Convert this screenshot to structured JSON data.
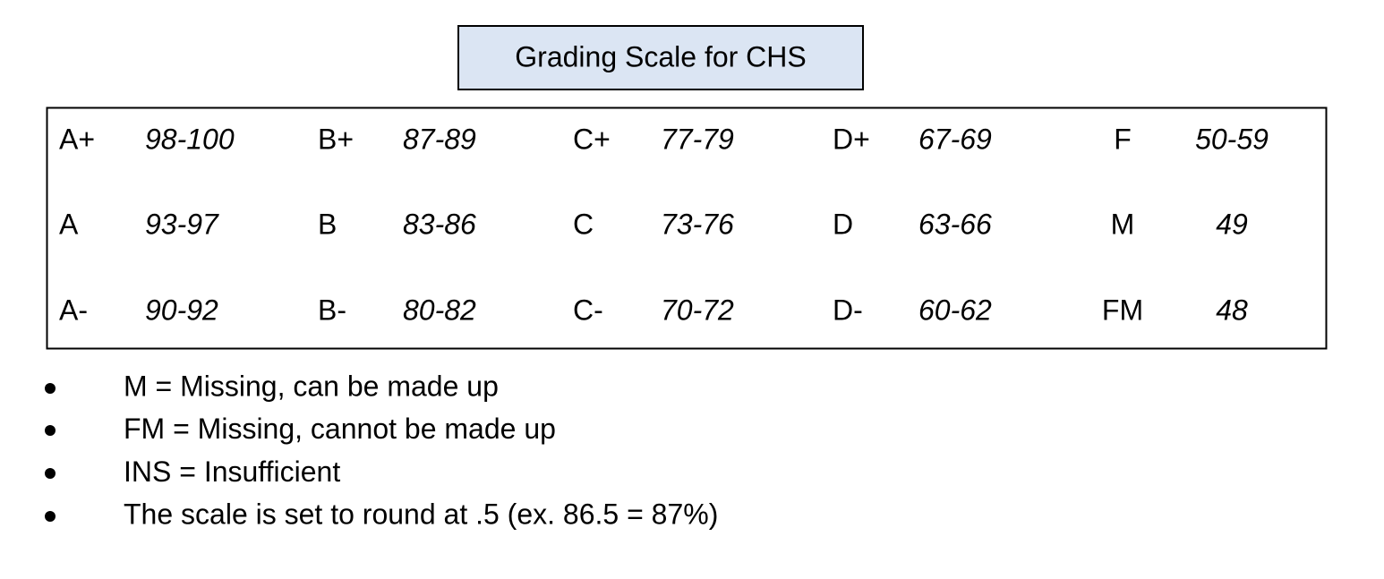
{
  "header": {
    "title": "Grading Scale for CHS"
  },
  "table": {
    "rows": [
      [
        "A+",
        "98-100",
        "B+",
        "87-89",
        "C+",
        "77-79",
        "D+",
        "67-69",
        "F",
        "50-59"
      ],
      [
        "A",
        "93-97",
        "B",
        "83-86",
        "C",
        "73-76",
        "D",
        "63-66",
        "M",
        "49"
      ],
      [
        "A-",
        "90-92",
        "B-",
        "80-82",
        "C-",
        "70-72",
        "D-",
        "60-62",
        "FM",
        "48"
      ]
    ]
  },
  "notes": [
    "M = Missing, can be made up",
    "FM = Missing, cannot be made up",
    "INS = Insufficient",
    "The scale is set to round at .5 (ex. 86.5 = 87%)"
  ]
}
